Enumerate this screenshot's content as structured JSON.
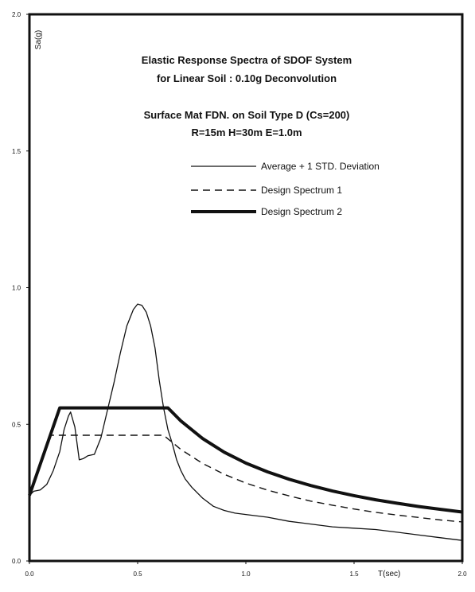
{
  "chart_data": {
    "type": "line",
    "title_lines": [
      "Elastic Response Spectra of SDOF System",
      "for Linear Soil : 0.10g Deconvolution",
      "Surface Mat FDN. on Soil Type D (Cs=200)",
      "R=15m H=30m E=1.0m"
    ],
    "xlabel": "T(sec)",
    "ylabel": "Sa(g)",
    "xlim": [
      0.0,
      2.0
    ],
    "ylim": [
      0.0,
      2.0
    ],
    "x_ticks": [
      {
        "value": 0.0,
        "label": "0.0"
      },
      {
        "value": 0.5,
        "label": "0.5"
      },
      {
        "value": 1.0,
        "label": "1.0"
      },
      {
        "value": 1.5,
        "label": "1.5"
      },
      {
        "value": 2.0,
        "label": "2.0"
      }
    ],
    "y_ticks": [
      {
        "value": 0.0,
        "label": "0.0"
      },
      {
        "value": 0.5,
        "label": "0.5"
      },
      {
        "value": 1.0,
        "label": "1.0"
      },
      {
        "value": 1.5,
        "label": "1.5"
      },
      {
        "value": 2.0,
        "label": "2.0"
      }
    ],
    "grid": false,
    "legend_position": "upper-right",
    "series": [
      {
        "name": "Average + 1 STD. Deviation",
        "style": "solid-thin",
        "color": "#111111",
        "x": [
          0.0,
          0.02,
          0.05,
          0.08,
          0.11,
          0.14,
          0.16,
          0.18,
          0.19,
          0.21,
          0.23,
          0.25,
          0.27,
          0.3,
          0.33,
          0.36,
          0.39,
          0.42,
          0.45,
          0.48,
          0.5,
          0.52,
          0.54,
          0.56,
          0.58,
          0.6,
          0.62,
          0.64,
          0.66,
          0.68,
          0.7,
          0.72,
          0.75,
          0.8,
          0.85,
          0.9,
          0.95,
          1.0,
          1.1,
          1.2,
          1.3,
          1.4,
          1.5,
          1.6,
          1.7,
          1.8,
          1.9,
          2.0
        ],
        "y": [
          0.24,
          0.255,
          0.26,
          0.28,
          0.33,
          0.4,
          0.48,
          0.53,
          0.545,
          0.49,
          0.37,
          0.375,
          0.385,
          0.39,
          0.45,
          0.55,
          0.65,
          0.76,
          0.86,
          0.92,
          0.94,
          0.935,
          0.91,
          0.86,
          0.78,
          0.66,
          0.56,
          0.48,
          0.43,
          0.37,
          0.33,
          0.3,
          0.27,
          0.23,
          0.2,
          0.185,
          0.175,
          0.17,
          0.16,
          0.145,
          0.135,
          0.125,
          0.12,
          0.115,
          0.105,
          0.095,
          0.085,
          0.075
        ]
      },
      {
        "name": "Design Spectrum 1",
        "style": "dashed",
        "color": "#111111",
        "x": [
          0.0,
          0.1,
          0.2,
          0.3,
          0.4,
          0.5,
          0.6,
          0.62,
          0.7,
          0.8,
          0.9,
          1.0,
          1.1,
          1.2,
          1.3,
          1.4,
          1.5,
          1.6,
          1.7,
          1.8,
          1.9,
          2.0
        ],
        "y": [
          0.24,
          0.46,
          0.46,
          0.46,
          0.46,
          0.46,
          0.46,
          0.46,
          0.408,
          0.357,
          0.317,
          0.285,
          0.259,
          0.238,
          0.219,
          0.204,
          0.19,
          0.178,
          0.168,
          0.159,
          0.15,
          0.143
        ]
      },
      {
        "name": "Design Spectrum 2",
        "style": "solid-thick",
        "color": "#111111",
        "x": [
          0.0,
          0.14,
          0.3,
          0.5,
          0.64,
          0.7,
          0.8,
          0.9,
          1.0,
          1.1,
          1.2,
          1.3,
          1.4,
          1.5,
          1.6,
          1.7,
          1.8,
          1.9,
          2.0
        ],
        "y": [
          0.24,
          0.56,
          0.56,
          0.56,
          0.56,
          0.512,
          0.448,
          0.398,
          0.358,
          0.326,
          0.299,
          0.276,
          0.256,
          0.239,
          0.224,
          0.211,
          0.199,
          0.189,
          0.179
        ]
      }
    ]
  }
}
